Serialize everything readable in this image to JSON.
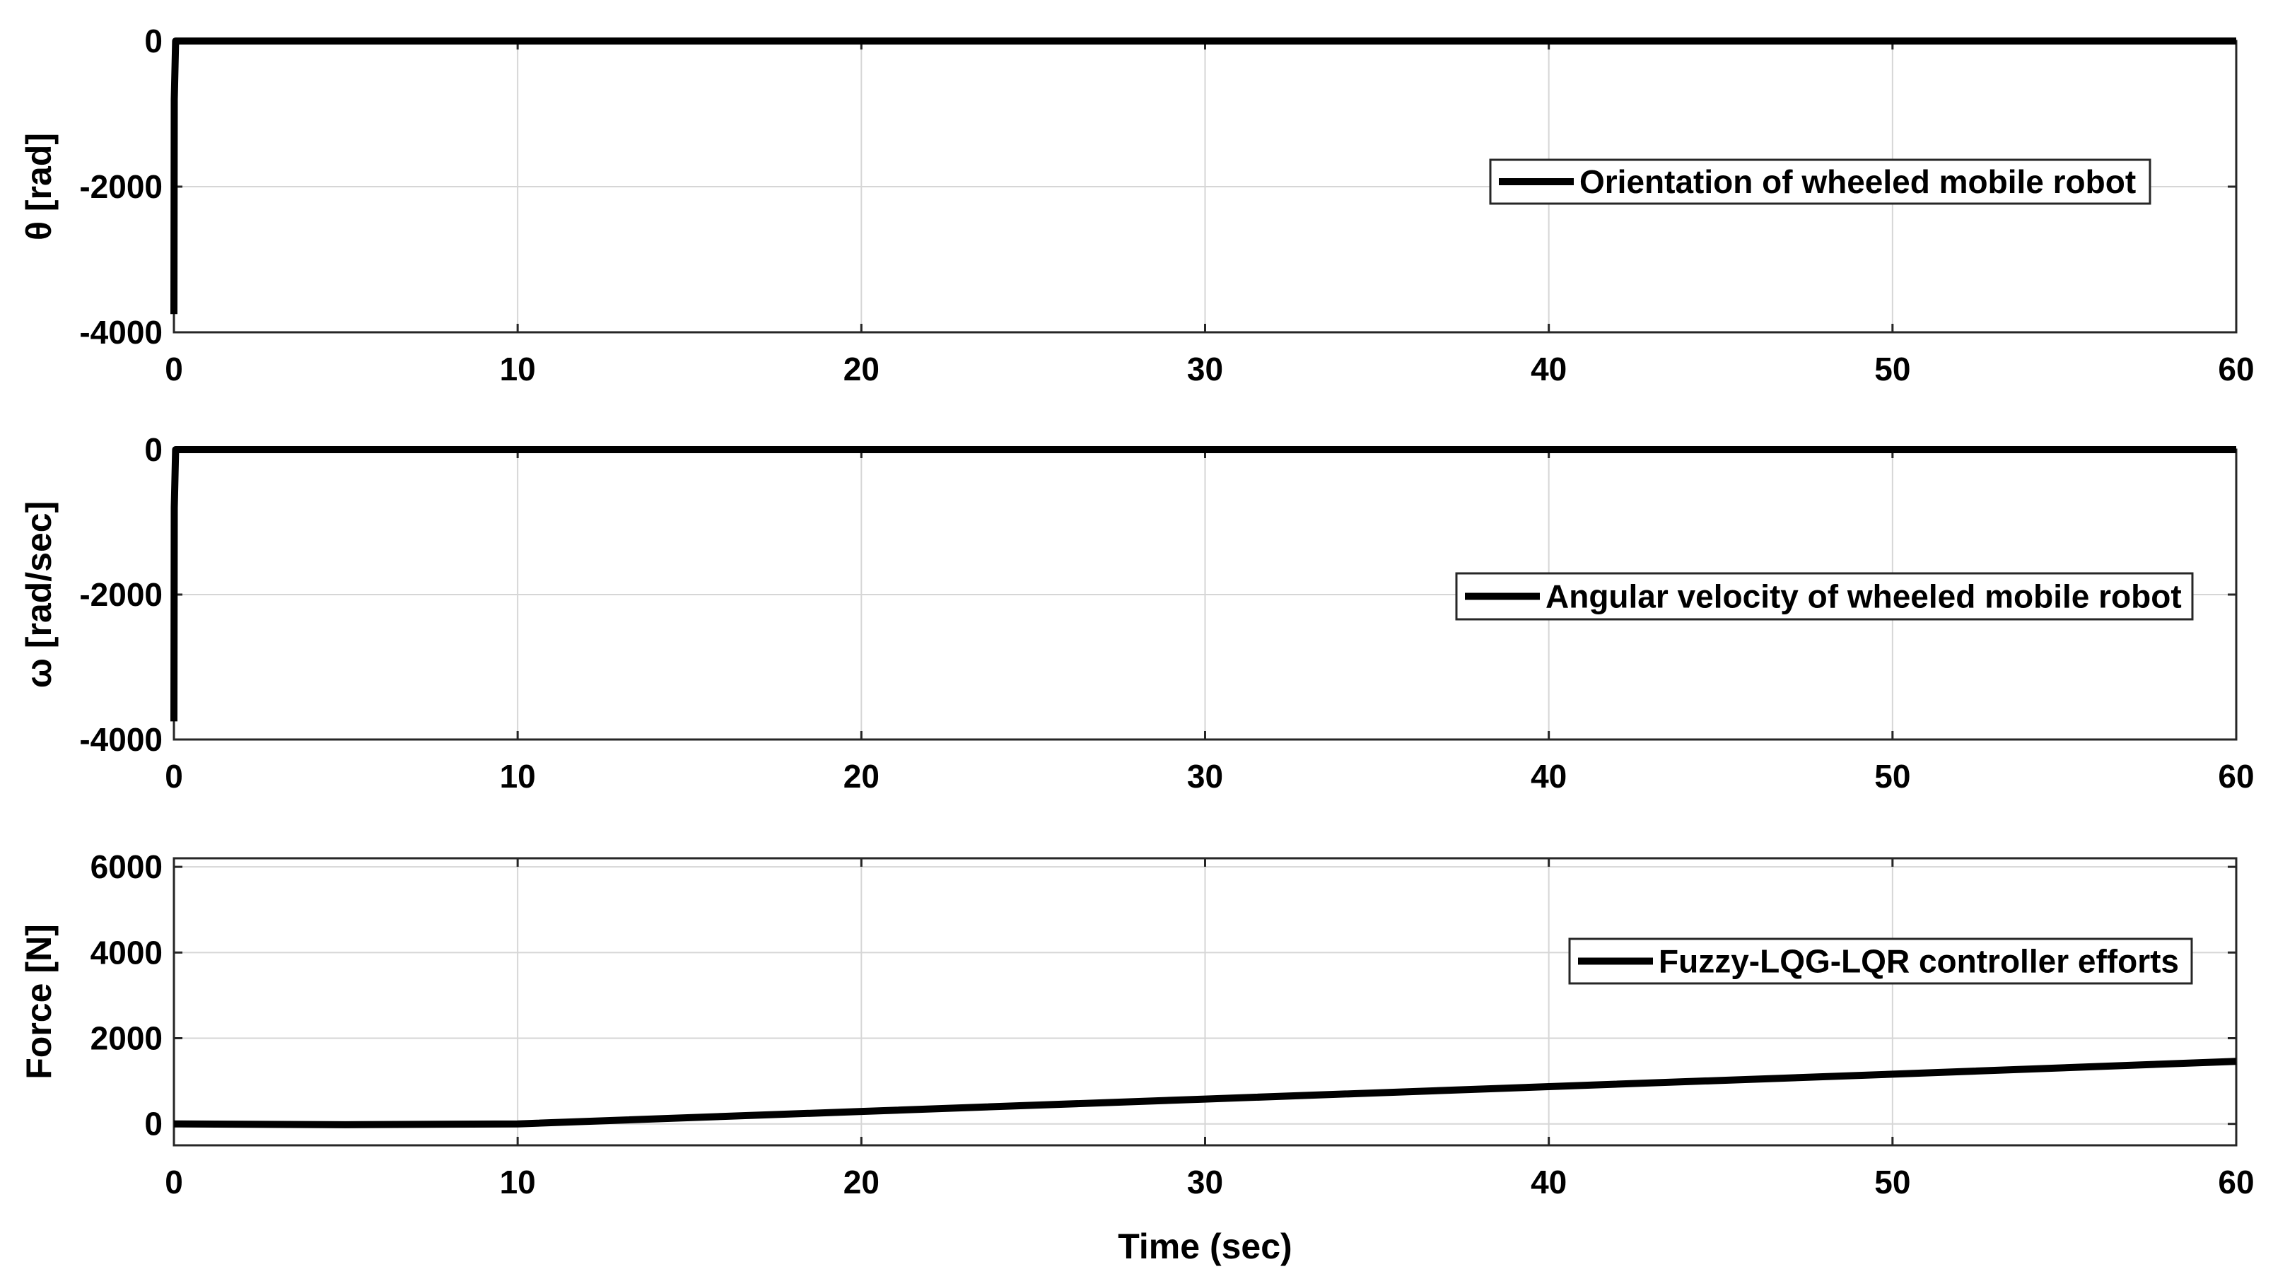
{
  "chart_data": [
    {
      "type": "line",
      "ylabel": "θ [rad]",
      "xlabel": "",
      "xlim": [
        0,
        60
      ],
      "ylim": [
        -4000,
        0
      ],
      "x_ticks": [
        "0",
        "10",
        "20",
        "30",
        "40",
        "50",
        "60"
      ],
      "y_ticks": [
        "0",
        "-2000",
        "-4000"
      ],
      "grid": true,
      "legend_position": "right",
      "series": [
        {
          "name": "Orientation of wheeled mobile robot",
          "color": "#000000",
          "x": [
            0,
            0.01,
            0.05,
            60
          ],
          "y": [
            -3750,
            -800,
            0,
            0
          ]
        }
      ]
    },
    {
      "type": "line",
      "ylabel": "ω [rad/sec]",
      "xlabel": "",
      "xlim": [
        0,
        60
      ],
      "ylim": [
        -4000,
        0
      ],
      "x_ticks": [
        "0",
        "10",
        "20",
        "30",
        "40",
        "50",
        "60"
      ],
      "y_ticks": [
        "0",
        "-2000",
        "-4000"
      ],
      "grid": true,
      "legend_position": "right",
      "series": [
        {
          "name": "Angular velocity of wheeled mobile robot",
          "color": "#000000",
          "x": [
            0,
            0.01,
            0.05,
            60
          ],
          "y": [
            -3750,
            -800,
            0,
            0
          ]
        }
      ]
    },
    {
      "type": "line",
      "ylabel": "Force [N]",
      "xlabel": "Time (sec)",
      "xlim": [
        0,
        60
      ],
      "ylim": [
        -500,
        6200
      ],
      "x_ticks": [
        "0",
        "10",
        "20",
        "30",
        "40",
        "50",
        "60"
      ],
      "y_ticks": [
        "0",
        "2000",
        "4000",
        "6000"
      ],
      "grid": true,
      "legend_position": "right",
      "series": [
        {
          "name": "Fuzzy-LQG-LQR controller efforts",
          "color": "#000000",
          "x": [
            0,
            5,
            10,
            20,
            30,
            40,
            50,
            60
          ],
          "y": [
            0,
            -20,
            0,
            290,
            580,
            870,
            1160,
            1460
          ]
        }
      ]
    }
  ]
}
